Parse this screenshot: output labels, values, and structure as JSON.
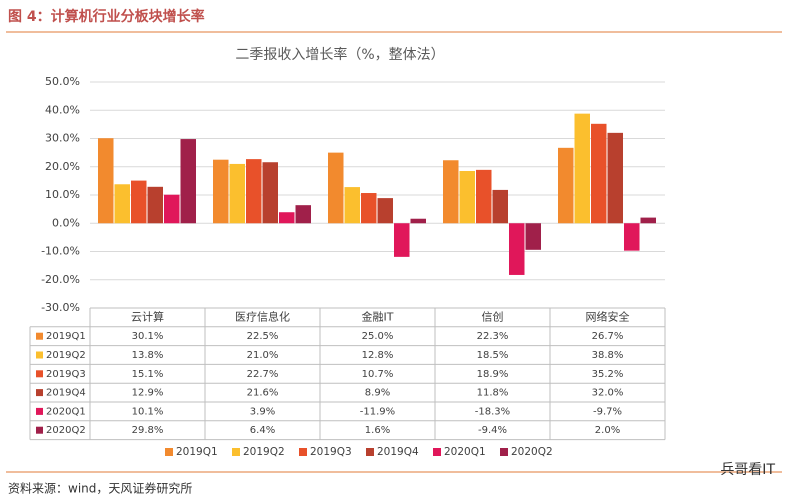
{
  "figure_title": "图 4：计算机行业分板块增长率",
  "source": "资料来源：wind，天风证券研究所",
  "watermark": "兵哥看IT",
  "chart_data": {
    "type": "bar",
    "title": "二季报收入增长率（%，整体法）",
    "categories": [
      "云计算",
      "医疗信息化",
      "金融IT",
      "信创",
      "网络安全"
    ],
    "series": [
      {
        "name": "2019Q1",
        "color": "#F28A2E",
        "values": [
          30.1,
          22.5,
          25.0,
          22.3,
          26.7
        ],
        "value_labels": [
          "30.1%",
          "22.5%",
          "25.0%",
          "22.3%",
          "26.7%"
        ]
      },
      {
        "name": "2019Q2",
        "color": "#FBBF2E",
        "values": [
          13.8,
          21.0,
          12.8,
          18.5,
          38.8
        ],
        "value_labels": [
          "13.8%",
          "21.0%",
          "12.8%",
          "18.5%",
          "38.8%"
        ]
      },
      {
        "name": "2019Q3",
        "color": "#E8512A",
        "values": [
          15.1,
          22.7,
          10.7,
          18.9,
          35.2
        ],
        "value_labels": [
          "15.1%",
          "22.7%",
          "10.7%",
          "18.9%",
          "35.2%"
        ]
      },
      {
        "name": "2019Q4",
        "color": "#B8402E",
        "values": [
          12.9,
          21.6,
          8.9,
          11.8,
          32.0
        ],
        "value_labels": [
          "12.9%",
          "21.6%",
          "8.9%",
          "11.8%",
          "32.0%"
        ]
      },
      {
        "name": "2020Q1",
        "color": "#E0175A",
        "values": [
          10.1,
          3.9,
          -11.9,
          -18.3,
          -9.7
        ],
        "value_labels": [
          "10.1%",
          "3.9%",
          "-11.9%",
          "-18.3%",
          "-9.7%"
        ]
      },
      {
        "name": "2020Q2",
        "color": "#A0204A",
        "values": [
          29.8,
          6.4,
          1.6,
          -9.4,
          2.0
        ],
        "value_labels": [
          "29.8%",
          "6.4%",
          "1.6%",
          "-9.4%",
          "2.0%"
        ]
      }
    ],
    "ylim": [
      -30,
      50
    ],
    "yticks": [
      {
        "value": -30,
        "label": "-30.0%"
      },
      {
        "value": -20,
        "label": "-20.0%"
      },
      {
        "value": -10,
        "label": "-10.0%"
      },
      {
        "value": 0,
        "label": "0.0%"
      },
      {
        "value": 10,
        "label": "10.0%"
      },
      {
        "value": 20,
        "label": "20.0%"
      },
      {
        "value": 30,
        "label": "30.0%"
      },
      {
        "value": 40,
        "label": "40.0%"
      },
      {
        "value": 50,
        "label": "50.0%"
      }
    ],
    "grid": true
  }
}
